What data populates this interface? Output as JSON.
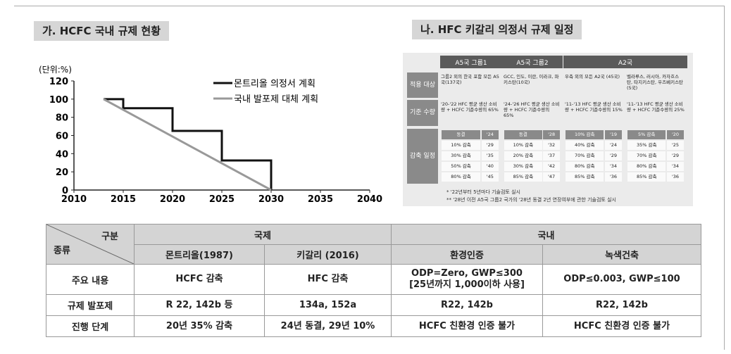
{
  "header": {
    "left_title": "가. HCFC 국내 규제 현황",
    "right_title": "나. HFC 키갈리 의정서 규제 일정"
  },
  "chart": {
    "type": "line",
    "y_label": "(단위:%)",
    "xlim": [
      2010,
      2040
    ],
    "ylim": [
      0,
      120
    ],
    "xticks": [
      2010,
      2015,
      2020,
      2025,
      2030,
      2035,
      2040
    ],
    "yticks": [
      0,
      20,
      40,
      60,
      80,
      100,
      120
    ],
    "series": [
      {
        "name": "몬트리올 의정서 계획",
        "color": "#111111",
        "x": [
          2013,
          2015,
          2015,
          2020,
          2020,
          2025,
          2025,
          2030,
          2030
        ],
        "values": [
          100,
          100,
          90,
          90,
          65,
          65,
          32.5,
          32.5,
          0
        ]
      },
      {
        "name": "국내 발포제 대체 계획",
        "color": "#999999",
        "x": [
          2013,
          2030
        ],
        "values": [
          100,
          0
        ]
      }
    ]
  },
  "kigali": {
    "headers": [
      "A5국 그룹1",
      "A5국 그룹2",
      "A2국"
    ],
    "rows": [
      {
        "label": "적용 대상",
        "cells": [
          "그룹2 외의 한국 포함 모든 A5국(137국)",
          "GCC, 인도, 이란, 이라크, 파키스탄(10국)",
          "우측 외의 모든 A2국 (45국)",
          "벨라루스, 러시아, 카자흐스탄, 타지키스탄, 우즈베키스탄(5국)"
        ]
      },
      {
        "label": "기준 수량",
        "cells": [
          "'20-'22 HFC 평균 생산 소비량 + HCFC 기준수량의 65%",
          "'24-'26 HFC 평균 생산 소비량 + HCFC 기준수량의 65%",
          "'11-'13 HFC 평균 생산 소비량 + HCFC 기준수량의 15%",
          "'11-'13 HFC 평균 생산 소비량 + HCFC 기준수량의 25%"
        ]
      }
    ],
    "schedule_label": "감축 일정",
    "schedule": [
      [
        [
          "동결",
          "'24"
        ],
        [
          "10% 감축",
          "'29"
        ],
        [
          "30% 감축",
          "'35"
        ],
        [
          "50% 감축",
          "'40"
        ],
        [
          "80% 감축",
          "'45"
        ]
      ],
      [
        [
          "동결",
          "'28"
        ],
        [
          "10% 감축",
          "'32"
        ],
        [
          "20% 감축",
          "'37"
        ],
        [
          "30% 감축",
          "'42"
        ],
        [
          "85% 감축",
          "'47"
        ]
      ],
      [
        [
          "10% 감축",
          "'19"
        ],
        [
          "40% 감축",
          "'24"
        ],
        [
          "70% 감축",
          "'29"
        ],
        [
          "80% 감축",
          "'34"
        ],
        [
          "85% 감축",
          "'36"
        ]
      ],
      [
        [
          "5% 감축",
          "'20"
        ],
        [
          "35% 감축",
          "'25"
        ],
        [
          "70% 감축",
          "'29"
        ],
        [
          "80% 감축",
          "'34"
        ],
        [
          "85% 감축",
          "'36"
        ]
      ]
    ],
    "notes": [
      "* '22년부터 5년마다 기술검토 실시",
      "** '28년 이전 A5국 그룹2 국가의 '28년 동결 2년 연장여부에 관한 기술검토 실시"
    ]
  },
  "table": {
    "corner_top": "구분",
    "corner_bottom": "종류",
    "groups": [
      "국제",
      "국내"
    ],
    "columns": [
      "몬트리올(1987)",
      "키갈리 (2016)",
      "환경인증",
      "녹색건축"
    ],
    "rows": [
      {
        "label": "주요 내용",
        "cells": [
          [
            "HCFC 감축"
          ],
          [
            "HFC 감축"
          ],
          [
            "ODP=Zero, GWP≤300",
            "[25년까지 1,000이하 사용]"
          ],
          [
            "ODP≤0.003, GWP≤100"
          ]
        ]
      },
      {
        "label": "규제 발포제",
        "cells": [
          [
            "R 22, 142b 등"
          ],
          [
            "134a, 152a"
          ],
          [
            "R22, 142b"
          ],
          [
            "R22, 142b"
          ]
        ]
      },
      {
        "label": "진행 단계",
        "cells": [
          [
            "20년 35% 감축"
          ],
          [
            "24년 동결, 29년 10%"
          ],
          [
            "HCFC 친환경 인증 불가"
          ],
          [
            "HCFC 친환경 인증 불가"
          ]
        ]
      }
    ]
  }
}
